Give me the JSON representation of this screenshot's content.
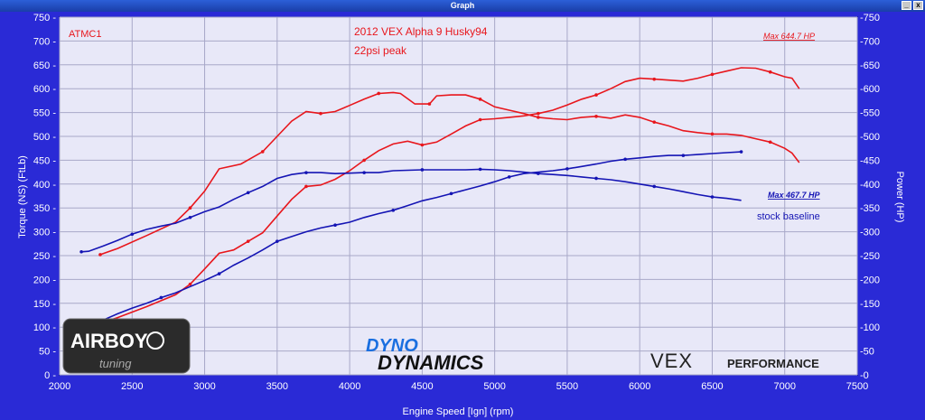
{
  "window": {
    "title": "Graph",
    "minimize_glyph": "_",
    "close_glyph": "x"
  },
  "logos": {
    "airboy": "AIRBOY",
    "airboy_sub": "tuning",
    "dyno_top": "DYNO",
    "dyno_bottom": "DYNAMICS",
    "vex": "VEX",
    "vex_sub": "PERFORMANCE"
  },
  "colors": {
    "red": "#e8161c",
    "blue": "#1414b4",
    "plot_bg": "#e8e8f8",
    "frame": "#2a2ad6"
  },
  "chart_data": {
    "type": "line",
    "xlabel": "Engine Speed [Ign] (rpm)",
    "ylabel_left": "Torque (NS) (FtLb)",
    "ylabel_right": "Power (HP)",
    "xlim": [
      2000,
      7500
    ],
    "ylim": [
      0,
      750
    ],
    "x_ticks": [
      2000,
      2500,
      3000,
      3500,
      4000,
      4500,
      5000,
      5500,
      6000,
      6500,
      7000,
      7500
    ],
    "y_ticks": [
      0,
      50,
      100,
      150,
      200,
      250,
      300,
      350,
      400,
      450,
      500,
      550,
      600,
      650,
      700,
      750
    ],
    "grid": true,
    "annotations": {
      "run_label": "ATMC1",
      "title_line1": "2012 VEX Alpha 9 Husky94",
      "title_line2": "22psi peak",
      "max_red": "Max 644.7 HP",
      "max_blue": "Max 467.7 HP",
      "baseline_label": "stock baseline"
    },
    "series": [
      {
        "color": "red",
        "kind": "torque",
        "points": [
          [
            2280,
            252
          ],
          [
            2400,
            265
          ],
          [
            2600,
            292
          ],
          [
            2800,
            320
          ],
          [
            2900,
            350
          ],
          [
            3000,
            385
          ],
          [
            3100,
            432
          ],
          [
            3250,
            442
          ],
          [
            3400,
            468
          ],
          [
            3500,
            500
          ],
          [
            3600,
            532
          ],
          [
            3700,
            552
          ],
          [
            3800,
            548
          ],
          [
            3900,
            552
          ],
          [
            4000,
            565
          ],
          [
            4100,
            578
          ],
          [
            4200,
            590
          ],
          [
            4300,
            592
          ],
          [
            4350,
            590
          ],
          [
            4450,
            568
          ],
          [
            4550,
            568
          ],
          [
            4600,
            585
          ],
          [
            4700,
            587
          ],
          [
            4800,
            587
          ],
          [
            4900,
            578
          ],
          [
            5000,
            562
          ],
          [
            5100,
            555
          ],
          [
            5200,
            548
          ],
          [
            5300,
            540
          ],
          [
            5400,
            537
          ],
          [
            5500,
            535
          ],
          [
            5600,
            540
          ],
          [
            5700,
            542
          ],
          [
            5800,
            538
          ],
          [
            5900,
            545
          ],
          [
            6000,
            540
          ],
          [
            6100,
            530
          ],
          [
            6200,
            522
          ],
          [
            6300,
            512
          ],
          [
            6400,
            508
          ],
          [
            6500,
            505
          ],
          [
            6600,
            505
          ],
          [
            6700,
            502
          ],
          [
            6800,
            495
          ],
          [
            6900,
            488
          ],
          [
            7000,
            475
          ],
          [
            7050,
            465
          ],
          [
            7100,
            445
          ]
        ]
      },
      {
        "color": "red",
        "kind": "power",
        "points": [
          [
            2280,
            108
          ],
          [
            2400,
            120
          ],
          [
            2600,
            143
          ],
          [
            2800,
            168
          ],
          [
            2900,
            190
          ],
          [
            3000,
            222
          ],
          [
            3100,
            255
          ],
          [
            3200,
            262
          ],
          [
            3300,
            280
          ],
          [
            3400,
            298
          ],
          [
            3500,
            333
          ],
          [
            3600,
            368
          ],
          [
            3700,
            395
          ],
          [
            3800,
            398
          ],
          [
            3900,
            410
          ],
          [
            4000,
            428
          ],
          [
            4100,
            450
          ],
          [
            4200,
            470
          ],
          [
            4300,
            484
          ],
          [
            4400,
            490
          ],
          [
            4500,
            482
          ],
          [
            4600,
            488
          ],
          [
            4700,
            505
          ],
          [
            4800,
            522
          ],
          [
            4900,
            535
          ],
          [
            5000,
            537
          ],
          [
            5100,
            540
          ],
          [
            5200,
            543
          ],
          [
            5300,
            548
          ],
          [
            5400,
            555
          ],
          [
            5500,
            566
          ],
          [
            5600,
            578
          ],
          [
            5700,
            587
          ],
          [
            5800,
            600
          ],
          [
            5900,
            615
          ],
          [
            6000,
            622
          ],
          [
            6100,
            620
          ],
          [
            6200,
            618
          ],
          [
            6300,
            616
          ],
          [
            6400,
            622
          ],
          [
            6500,
            630
          ],
          [
            6600,
            637
          ],
          [
            6700,
            644
          ],
          [
            6800,
            643
          ],
          [
            6900,
            635
          ],
          [
            7000,
            625
          ],
          [
            7050,
            622
          ],
          [
            7100,
            600
          ]
        ]
      },
      {
        "color": "blue",
        "kind": "torque",
        "points": [
          [
            2150,
            258
          ],
          [
            2200,
            259
          ],
          [
            2300,
            270
          ],
          [
            2400,
            282
          ],
          [
            2500,
            295
          ],
          [
            2600,
            305
          ],
          [
            2700,
            312
          ],
          [
            2800,
            318
          ],
          [
            2900,
            330
          ],
          [
            3000,
            342
          ],
          [
            3100,
            352
          ],
          [
            3200,
            368
          ],
          [
            3300,
            382
          ],
          [
            3400,
            395
          ],
          [
            3500,
            412
          ],
          [
            3600,
            420
          ],
          [
            3700,
            424
          ],
          [
            3800,
            424
          ],
          [
            3900,
            422
          ],
          [
            4000,
            423
          ],
          [
            4100,
            424
          ],
          [
            4200,
            424
          ],
          [
            4300,
            428
          ],
          [
            4400,
            429
          ],
          [
            4500,
            430
          ],
          [
            4600,
            430
          ],
          [
            4700,
            430
          ],
          [
            4800,
            430
          ],
          [
            4900,
            431
          ],
          [
            5000,
            430
          ],
          [
            5100,
            428
          ],
          [
            5200,
            425
          ],
          [
            5300,
            422
          ],
          [
            5400,
            420
          ],
          [
            5500,
            418
          ],
          [
            5600,
            415
          ],
          [
            5700,
            412
          ],
          [
            5800,
            409
          ],
          [
            5900,
            405
          ],
          [
            6000,
            400
          ],
          [
            6100,
            395
          ],
          [
            6200,
            390
          ],
          [
            6300,
            384
          ],
          [
            6400,
            378
          ],
          [
            6500,
            373
          ],
          [
            6600,
            370
          ],
          [
            6700,
            366
          ]
        ]
      },
      {
        "color": "blue",
        "kind": "power",
        "points": [
          [
            2300,
            115
          ],
          [
            2400,
            128
          ],
          [
            2500,
            140
          ],
          [
            2600,
            150
          ],
          [
            2700,
            162
          ],
          [
            2800,
            172
          ],
          [
            2900,
            185
          ],
          [
            3000,
            198
          ],
          [
            3100,
            212
          ],
          [
            3200,
            230
          ],
          [
            3300,
            245
          ],
          [
            3400,
            262
          ],
          [
            3500,
            280
          ],
          [
            3600,
            290
          ],
          [
            3700,
            300
          ],
          [
            3800,
            308
          ],
          [
            3900,
            314
          ],
          [
            4000,
            320
          ],
          [
            4100,
            330
          ],
          [
            4200,
            338
          ],
          [
            4300,
            345
          ],
          [
            4400,
            355
          ],
          [
            4500,
            365
          ],
          [
            4600,
            372
          ],
          [
            4700,
            380
          ],
          [
            4800,
            388
          ],
          [
            4900,
            396
          ],
          [
            5000,
            405
          ],
          [
            5100,
            415
          ],
          [
            5200,
            422
          ],
          [
            5300,
            425
          ],
          [
            5400,
            428
          ],
          [
            5500,
            432
          ],
          [
            5600,
            437
          ],
          [
            5700,
            442
          ],
          [
            5800,
            448
          ],
          [
            5900,
            452
          ],
          [
            6000,
            455
          ],
          [
            6100,
            458
          ],
          [
            6200,
            460
          ],
          [
            6300,
            460
          ],
          [
            6400,
            462
          ],
          [
            6500,
            464
          ],
          [
            6600,
            466
          ],
          [
            6700,
            467.7
          ]
        ]
      }
    ]
  }
}
